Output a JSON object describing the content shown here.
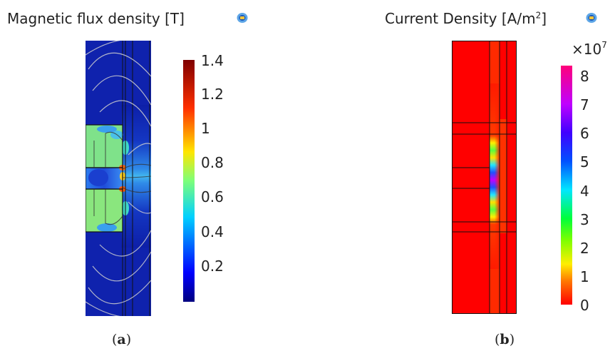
{
  "panel_a": {
    "title": "Magnetic flux density [T]",
    "icon": "comsol-logo-icon",
    "colorbar_ticks": [
      "1.4",
      "1.2",
      "1",
      "0.8",
      "0.6",
      "0.4",
      "0.2"
    ],
    "colorbar_range": [
      0,
      1.42
    ],
    "colormap": "rainbow (dark blue to dark red)",
    "caption_letter": "a"
  },
  "panel_b": {
    "title_main": "Current Density [A/m",
    "title_sup": "2",
    "title_end": "]",
    "icon": "comsol-logo-icon",
    "multiplier_base": "×10",
    "multiplier_exp": "7",
    "colorbar_ticks": [
      "8",
      "7",
      "6",
      "5",
      "4",
      "3",
      "2",
      "1",
      "0"
    ],
    "colorbar_range": [
      0,
      8.3
    ],
    "colormap": "wave (red to magenta)",
    "caption_letter": "b"
  }
}
